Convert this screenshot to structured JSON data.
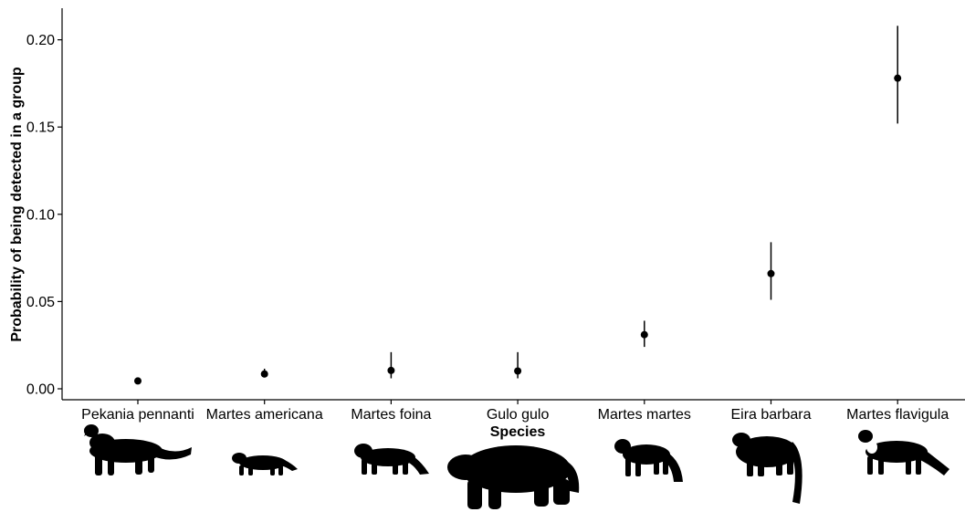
{
  "chart_data": {
    "type": "scatter",
    "title": "",
    "xlabel": "Species",
    "ylabel": "Probability of being detected in a group",
    "ylim": [
      -0.005,
      0.21
    ],
    "yticks": [
      "0.00",
      "0.05",
      "0.10",
      "0.15",
      "0.20"
    ],
    "grid": false,
    "categories": [
      "Pekania pennanti",
      "Martes americana",
      "Martes foina",
      "Gulo gulo",
      "Martes martes",
      "Eira barbara",
      "Martes flavigula"
    ],
    "values": [
      0.0045,
      0.0085,
      0.0105,
      0.0102,
      0.031,
      0.066,
      0.178
    ],
    "lower": [
      0.0045,
      0.0065,
      0.006,
      0.006,
      0.024,
      0.051,
      0.152
    ],
    "upper": [
      0.0045,
      0.0115,
      0.021,
      0.021,
      0.039,
      0.084,
      0.208
    ],
    "marker_color": "#000000",
    "silhouettes": [
      "fisher-silhouette",
      "american-marten-silhouette",
      "stone-marten-silhouette",
      "wolverine-silhouette",
      "pine-marten-silhouette",
      "tayra-silhouette",
      "yellow-throated-marten-silhouette"
    ]
  }
}
